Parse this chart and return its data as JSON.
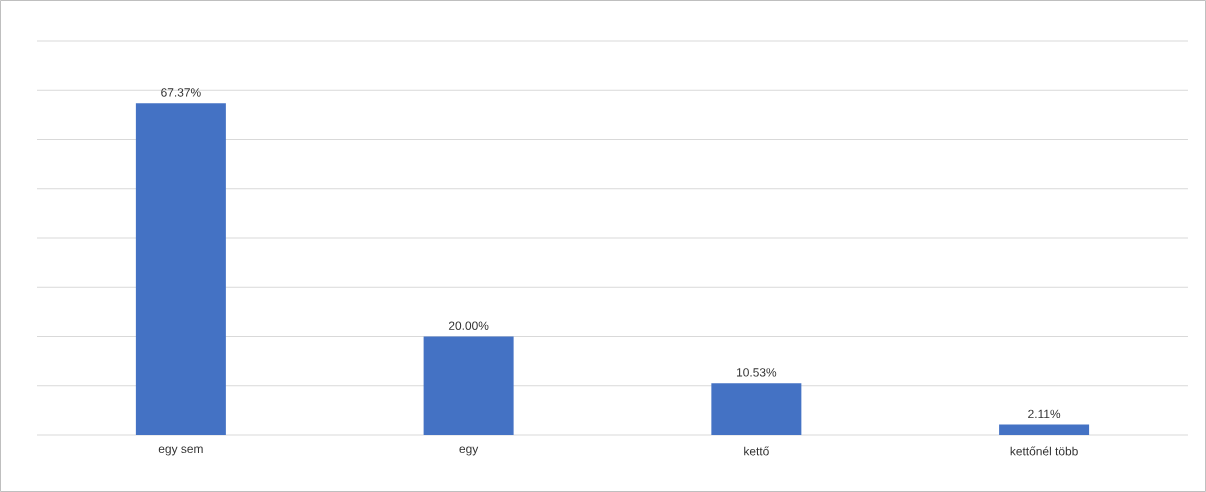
{
  "chart_data": {
    "type": "bar",
    "categories": [
      "egy sem",
      "egy",
      "kettő",
      "kettőnél több"
    ],
    "values": [
      67.37,
      20.0,
      10.53,
      2.11
    ],
    "value_labels": [
      "67.37%",
      "20.00%",
      "10.53%",
      "2.11%"
    ],
    "color": "#4472c4",
    "ylim": [
      0,
      80
    ],
    "yticks": [
      {
        "value": 0,
        "label": null
      },
      {
        "value": 10,
        "label": null
      },
      {
        "value": 20,
        "label": null
      },
      {
        "value": 30,
        "label": null
      },
      {
        "value": 40,
        "label": null
      },
      {
        "value": 50,
        "label": null
      },
      {
        "value": 60,
        "label": null
      },
      {
        "value": 70,
        "label": null
      },
      {
        "value": 80,
        "label": null
      }
    ],
    "grid": "y",
    "tick_labels": "x"
  }
}
